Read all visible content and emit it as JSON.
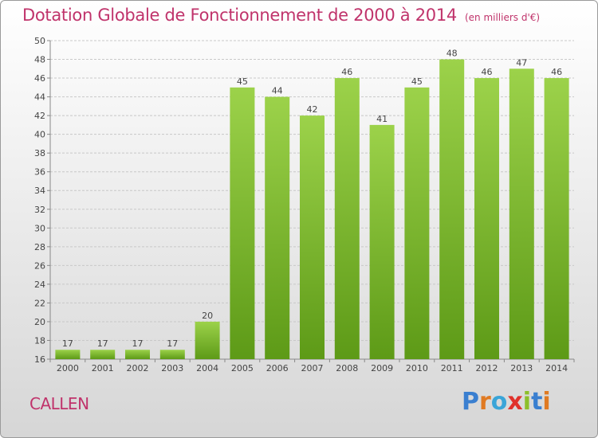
{
  "header": {
    "title": "Dotation Globale de Fonctionnement de 2000 à 2014",
    "subtitle": "(en milliers d'€)"
  },
  "footer": {
    "commune": "CALLEN",
    "logo_text": "Proxiti",
    "logo_letters": [
      {
        "char": "P",
        "color": "#3a7fd0"
      },
      {
        "char": "r",
        "color": "#e07a22"
      },
      {
        "char": "o",
        "color": "#3aa5d8"
      },
      {
        "char": "x",
        "color": "#e0312b"
      },
      {
        "char": "i",
        "color": "#8cbf2a"
      },
      {
        "char": "t",
        "color": "#3a7fd0"
      },
      {
        "char": "i",
        "color": "#e07a22"
      }
    ]
  },
  "colors": {
    "accent": "#c0336b",
    "bar_light": "#9cd24a",
    "bar_dark": "#5d9a17"
  },
  "chart_data": {
    "type": "bar",
    "title": "Dotation Globale de Fonctionnement de 2000 à 2014",
    "subtitle": "(en milliers d'€)",
    "xlabel": "",
    "ylabel": "",
    "categories": [
      "2000",
      "2001",
      "2002",
      "2003",
      "2004",
      "2005",
      "2006",
      "2007",
      "2008",
      "2009",
      "2010",
      "2011",
      "2012",
      "2013",
      "2014"
    ],
    "values": [
      17,
      17,
      17,
      17,
      20,
      45,
      44,
      42,
      46,
      41,
      45,
      48,
      46,
      47,
      46
    ],
    "ylim": [
      16,
      50
    ],
    "yticks": [
      16,
      18,
      20,
      22,
      24,
      26,
      28,
      30,
      32,
      34,
      36,
      38,
      40,
      42,
      44,
      46,
      48,
      50
    ],
    "grid": true,
    "legend": "none"
  }
}
